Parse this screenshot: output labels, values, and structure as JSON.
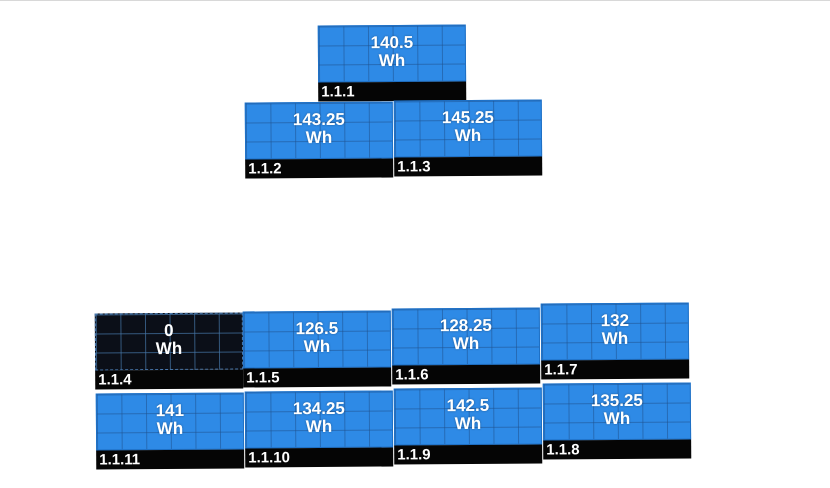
{
  "colors": {
    "panel_active": "#2e8ae6",
    "panel_inactive": "#0b0f18",
    "label_bar": "#050505",
    "text": "#ffffff"
  },
  "panels": [
    {
      "id": "1.1.1",
      "value": "140.5",
      "unit": "Wh",
      "status": "producing"
    },
    {
      "id": "1.1.2",
      "value": "143.25",
      "unit": "Wh",
      "status": "producing"
    },
    {
      "id": "1.1.3",
      "value": "145.25",
      "unit": "Wh",
      "status": "producing"
    },
    {
      "id": "1.1.4",
      "value": "0",
      "unit": "Wh",
      "status": "off"
    },
    {
      "id": "1.1.5",
      "value": "126.5",
      "unit": "Wh",
      "status": "producing"
    },
    {
      "id": "1.1.6",
      "value": "128.25",
      "unit": "Wh",
      "status": "producing"
    },
    {
      "id": "1.1.7",
      "value": "132",
      "unit": "Wh",
      "status": "producing"
    },
    {
      "id": "1.1.8",
      "value": "135.25",
      "unit": "Wh",
      "status": "producing"
    },
    {
      "id": "1.1.9",
      "value": "142.5",
      "unit": "Wh",
      "status": "producing"
    },
    {
      "id": "1.1.10",
      "value": "134.25",
      "unit": "Wh",
      "status": "producing"
    },
    {
      "id": "1.1.11",
      "value": "141",
      "unit": "Wh",
      "status": "producing"
    }
  ]
}
